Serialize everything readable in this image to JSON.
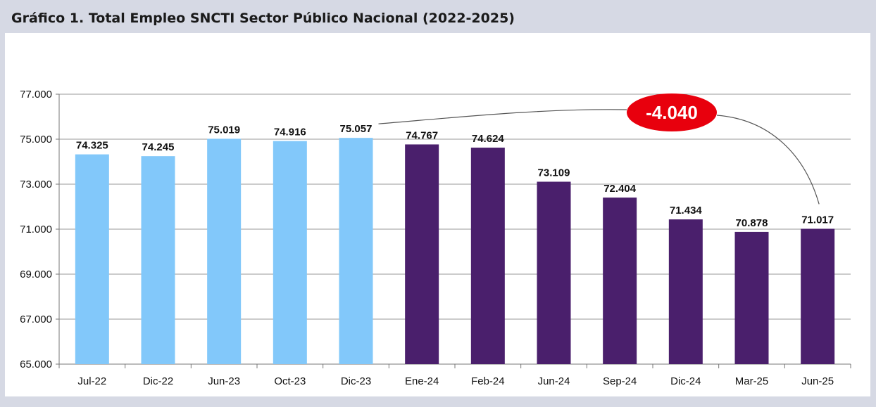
{
  "title": "Gráfico 1. Total Empleo SNCTI Sector Público Nacional (2022-2025)",
  "chart_data": {
    "type": "bar",
    "title": "Gráfico 1. Total Empleo SNCTI Sector Público Nacional (2022-2025)",
    "xlabel": "",
    "ylabel": "",
    "ylim": [
      65000,
      77000
    ],
    "grid": true,
    "y_ticks": [
      65000,
      67000,
      69000,
      71000,
      73000,
      75000,
      77000
    ],
    "y_tick_labels": [
      "65.000",
      "67.000",
      "69.000",
      "71.000",
      "73.000",
      "75.000",
      "77.000"
    ],
    "categories": [
      "Jul-22",
      "Dic-22",
      "Jun-23",
      "Oct-23",
      "Dic-23",
      "Ene-24",
      "Feb-24",
      "Jun-24",
      "Sep-24",
      "Dic-24",
      "Mar-25",
      "Jun-25"
    ],
    "values": [
      74325,
      74245,
      75019,
      74916,
      75057,
      74767,
      74624,
      73109,
      72404,
      71434,
      70878,
      71017
    ],
    "value_labels": [
      "74.325",
      "74.245",
      "75.019",
      "74.916",
      "75.057",
      "74.767",
      "74.624",
      "73.109",
      "72.404",
      "71.434",
      "70.878",
      "71.017"
    ],
    "bar_colors": [
      "#82c8fa",
      "#82c8fa",
      "#82c8fa",
      "#82c8fa",
      "#82c8fa",
      "#4a1f6c",
      "#4a1f6c",
      "#4a1f6c",
      "#4a1f6c",
      "#4a1f6c",
      "#4a1f6c",
      "#4a1f6c"
    ],
    "annotation": {
      "text": "-4.040",
      "from_category": "Dic-23",
      "to_category": "Jun-25",
      "color": "#e8000d"
    }
  }
}
